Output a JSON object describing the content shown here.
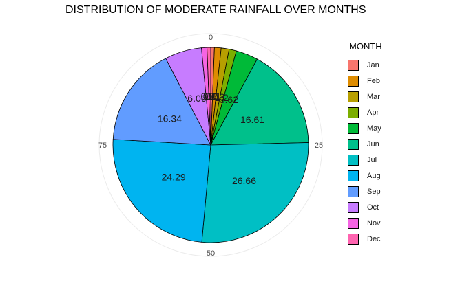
{
  "chart_data": {
    "type": "pie",
    "title": "DISTRIBUTION OF MODERATE RAINFALL OVER MONTHS",
    "legend_title": "MONTH",
    "legend_position": "right",
    "categories": [
      "Jan",
      "Feb",
      "Mar",
      "Apr",
      "May",
      "Jun",
      "Jul",
      "Aug",
      "Sep",
      "Oct",
      "Nov",
      "Dec"
    ],
    "values": [
      0.6,
      1.1,
      1.3,
      1.2,
      3.62,
      16.61,
      26.66,
      24.29,
      16.34,
      6.06,
      0.9,
      0.6
    ],
    "data_labels": [
      "0.6",
      "1.1",
      "1.3",
      "1.2",
      "3.62",
      "16.61",
      "26.66",
      "24.29",
      "16.34",
      "6.06",
      "0.9",
      "0.6"
    ],
    "colors": [
      "#F8766D",
      "#DE8C00",
      "#B79F00",
      "#7CAE00",
      "#00BA38",
      "#00C08B",
      "#00BFC4",
      "#00B4F0",
      "#619CFF",
      "#C77CFF",
      "#F564E3",
      "#FF64B0"
    ],
    "axis_ticks": [
      "0",
      "25",
      "50",
      "75"
    ],
    "axis_max": 100
  }
}
